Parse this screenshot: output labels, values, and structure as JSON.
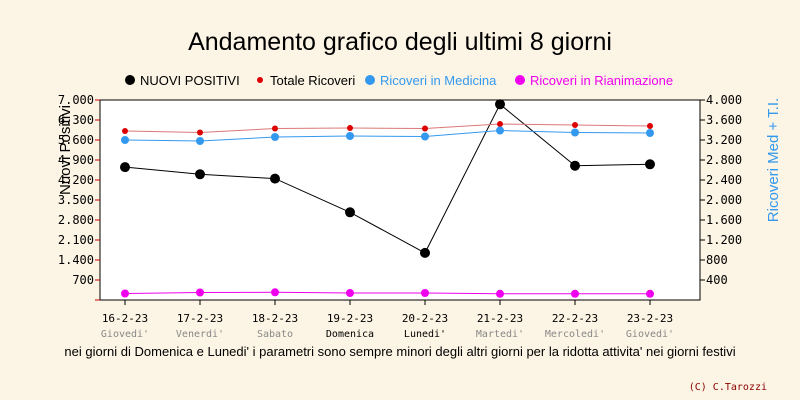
{
  "chart_data": {
    "type": "line",
    "title": "Andamento grafico degli ultimi 8 giorni",
    "categories": [
      "16-2-23",
      "17-2-23",
      "18-2-23",
      "19-2-23",
      "20-2-23",
      "21-2-23",
      "22-2-23",
      "23-2-23"
    ],
    "weekdays": [
      "Giovedi'",
      "Venerdi'",
      "Sabato",
      "Domenica",
      "Lunedi'",
      "Martedi'",
      "Mercoledi'",
      "Giovedi'"
    ],
    "weekday_colors": [
      "#888888",
      "#888888",
      "#888888",
      "#000000",
      "#000000",
      "#888888",
      "#888888",
      "#888888"
    ],
    "y_left": {
      "label": "Nuovi Positivi",
      "ylim": [
        0,
        7000
      ],
      "ticks": [
        "700",
        "1.400",
        "2.100",
        "2.800",
        "3.500",
        "4.200",
        "4.900",
        "5.600",
        "6.300",
        "7.000"
      ],
      "tick_values": [
        700,
        1400,
        2100,
        2800,
        3500,
        4200,
        4900,
        5600,
        6300,
        7000
      ]
    },
    "y_right": {
      "label": "Ricoveri Med + T.I.",
      "ylim": [
        0,
        4000
      ],
      "ticks": [
        "400",
        "800",
        "1.200",
        "1.600",
        "2.000",
        "2.400",
        "2.800",
        "3.200",
        "3.600",
        "4.000"
      ],
      "tick_values": [
        400,
        800,
        1200,
        1600,
        2000,
        2400,
        2800,
        3200,
        3600,
        4000
      ]
    },
    "series": [
      {
        "name": "NUOVI POSITIVI",
        "axis": "left",
        "color": "#000000",
        "line_color": "#000000",
        "marker_r": 5,
        "values": [
          4650,
          4400,
          4250,
          3070,
          1650,
          6850,
          4700,
          4750
        ]
      },
      {
        "name": "Totale Ricoveri",
        "axis": "right",
        "color": "#dd0000",
        "line_color": "#dd7777",
        "marker_r": 3,
        "values": [
          3380,
          3350,
          3430,
          3440,
          3430,
          3520,
          3500,
          3480
        ]
      },
      {
        "name": "Ricoveri in Medicina",
        "axis": "right",
        "color": "#3399ee",
        "line_color": "#3399ee",
        "marker_r": 4,
        "values": [
          3200,
          3180,
          3260,
          3280,
          3270,
          3390,
          3350,
          3340
        ]
      },
      {
        "name": "Ricoveri in Rianimazione",
        "axis": "right",
        "color": "#ee00ee",
        "line_color": "#ee00ee",
        "marker_r": 4,
        "values": [
          130,
          150,
          155,
          140,
          140,
          125,
          125,
          125
        ]
      }
    ],
    "legend_position": "top"
  },
  "note": "nei giorni di Domenica e Lunedi' i parametri sono sempre minori degli altri giorni per la ridotta attivita' nei giorni festivi",
  "credit": "(C) C.Tarozzi"
}
